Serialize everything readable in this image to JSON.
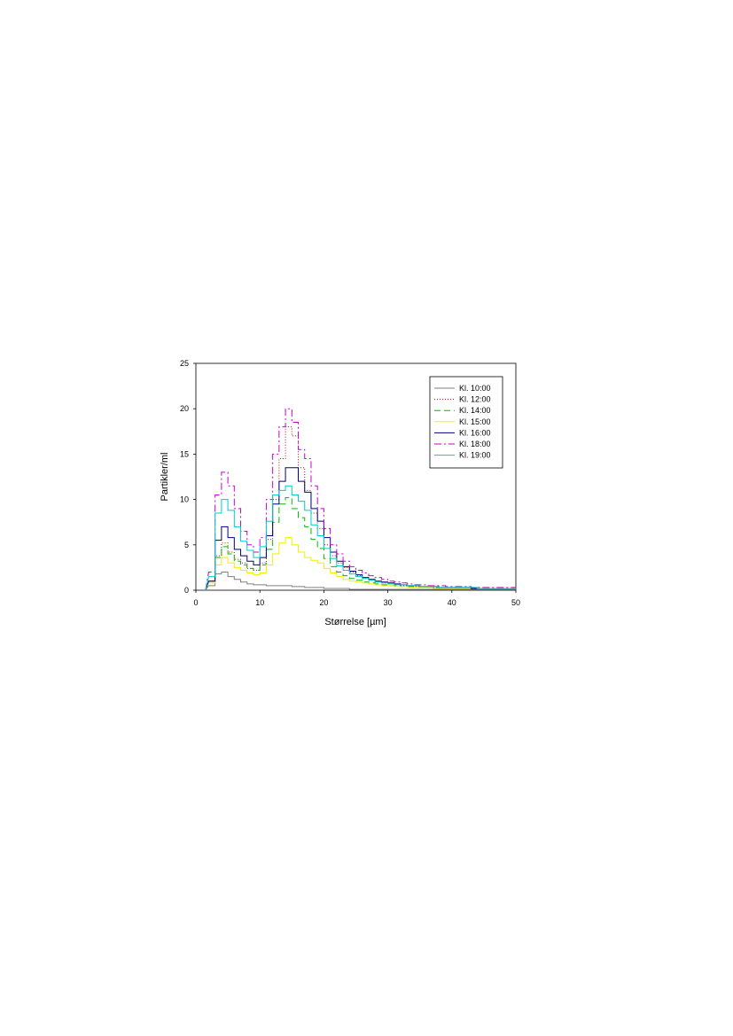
{
  "chart_data": {
    "type": "line",
    "step": true,
    "xlabel": "Størrelse [µm]",
    "ylabel": "Partikler/ml",
    "xlim": [
      0,
      50
    ],
    "ylim": [
      0,
      25
    ],
    "xticks": [
      0,
      10,
      20,
      30,
      40,
      50
    ],
    "yticks": [
      0,
      5,
      10,
      15,
      20,
      25
    ],
    "grid": false,
    "legend_position": "top-right",
    "x": [
      2,
      3,
      4,
      5,
      6,
      7,
      8,
      9,
      10,
      11,
      12,
      13,
      14,
      15,
      16,
      17,
      18,
      19,
      20,
      21,
      22,
      23,
      24,
      25,
      26,
      27,
      28,
      29,
      30,
      31,
      32,
      33,
      34,
      35,
      36,
      37,
      38,
      39,
      40,
      41,
      42,
      43,
      44,
      45,
      46,
      47,
      48,
      49,
      50
    ],
    "series": [
      {
        "name": "Kl. 10:00",
        "color": "#808080",
        "dash": "",
        "values": [
          0.5,
          1.8,
          2.0,
          1.5,
          1.2,
          0.9,
          0.7,
          0.6,
          0.6,
          0.5,
          0.5,
          0.5,
          0.5,
          0.4,
          0.4,
          0.3,
          0.3,
          0.3,
          0.2,
          0.2,
          0.2,
          0.2,
          0.1,
          0.1,
          0.1,
          0.1,
          0.1,
          0.1,
          0.1,
          0.1,
          0.1,
          0.1,
          0.1,
          0.1,
          0.1,
          0.1,
          0.1,
          0.1,
          0.1,
          0.1,
          0.1,
          0.1,
          0.1,
          0.1,
          0.1,
          0.1,
          0.1,
          0.1,
          0.1
        ]
      },
      {
        "name": "Kl. 12:00",
        "color": "#cc0000",
        "dash": "1,2",
        "values": [
          1.0,
          3.8,
          5.2,
          4.2,
          3.4,
          3.0,
          2.4,
          2.2,
          3.0,
          5.6,
          10.0,
          14.5,
          18.0,
          17.0,
          13.5,
          11.0,
          8.5,
          6.8,
          5.0,
          3.8,
          3.0,
          2.5,
          2.0,
          1.6,
          1.3,
          1.1,
          0.9,
          0.8,
          0.7,
          0.6,
          0.5,
          0.5,
          0.4,
          0.4,
          0.3,
          0.3,
          0.3,
          0.3,
          0.2,
          0.2,
          0.2,
          0.2,
          0.2,
          0.2,
          0.2,
          0.2,
          0.2,
          0.2,
          0.2
        ]
      },
      {
        "name": "Kl. 14:00",
        "color": "#00bb00",
        "dash": "7,4",
        "values": [
          1.0,
          3.6,
          4.8,
          4.0,
          3.2,
          2.8,
          2.4,
          2.2,
          2.8,
          4.5,
          7.5,
          9.5,
          10.2,
          9.0,
          8.0,
          7.0,
          5.6,
          4.6,
          3.5,
          2.6,
          2.0,
          1.6,
          1.3,
          1.1,
          0.9,
          0.8,
          0.7,
          0.6,
          0.5,
          0.5,
          0.4,
          0.4,
          0.3,
          0.3,
          0.3,
          0.3,
          0.2,
          0.2,
          0.2,
          0.2,
          0.2,
          0.2,
          0.2,
          0.2,
          0.2,
          0.2,
          0.2,
          0.2,
          0.2
        ]
      },
      {
        "name": "Kl. 15:00",
        "color": "#f0f000",
        "dash": "",
        "values": [
          0.8,
          2.8,
          3.6,
          3.0,
          2.5,
          2.2,
          1.9,
          1.7,
          1.9,
          2.8,
          4.0,
          5.2,
          5.8,
          5.0,
          4.2,
          3.6,
          3.3,
          3.0,
          2.4,
          1.9,
          1.5,
          1.2,
          1.0,
          0.9,
          0.8,
          0.7,
          0.6,
          0.5,
          0.5,
          0.4,
          0.4,
          0.3,
          0.3,
          0.3,
          0.3,
          0.2,
          0.2,
          0.2,
          0.2,
          0.2,
          0.2,
          0.2,
          0.2,
          0.2,
          0.2,
          0.2,
          0.2,
          0.2,
          0.2
        ]
      },
      {
        "name": "Kl. 16:00",
        "color": "#000080",
        "dash": "",
        "values": [
          1.0,
          5.5,
          7.0,
          5.8,
          4.5,
          3.8,
          3.2,
          2.8,
          3.6,
          6.0,
          9.5,
          12.0,
          13.5,
          13.5,
          12.0,
          10.8,
          9.0,
          7.6,
          5.8,
          4.2,
          3.2,
          2.6,
          2.1,
          1.7,
          1.4,
          1.2,
          1.0,
          0.9,
          0.8,
          0.7,
          0.6,
          0.5,
          0.5,
          0.4,
          0.4,
          0.4,
          0.3,
          0.3,
          0.3,
          0.3,
          0.3,
          0.2,
          0.2,
          0.2,
          0.2,
          0.2,
          0.2,
          0.2,
          0.2
        ]
      },
      {
        "name": "Kl. 18:00",
        "color": "#cc00cc",
        "dash": "8,3,2,3",
        "values": [
          2.0,
          10.5,
          13.0,
          11.5,
          9.0,
          6.5,
          5.0,
          4.2,
          5.8,
          10.0,
          15.0,
          18.0,
          20.0,
          18.5,
          15.5,
          14.5,
          11.5,
          9.0,
          6.8,
          5.0,
          4.0,
          3.2,
          2.6,
          2.2,
          1.9,
          1.6,
          1.4,
          1.2,
          1.0,
          0.9,
          0.8,
          0.7,
          0.6,
          0.6,
          0.5,
          0.5,
          0.5,
          0.4,
          0.4,
          0.4,
          0.4,
          0.3,
          0.3,
          0.3,
          0.3,
          0.3,
          0.3,
          0.3,
          0.3
        ]
      },
      {
        "name": "Kl. 19:00",
        "color": "#00cccc",
        "dash": "",
        "values": [
          1.5,
          8.5,
          10.0,
          8.8,
          7.0,
          5.4,
          4.4,
          3.6,
          4.8,
          7.6,
          10.5,
          11.0,
          11.5,
          10.5,
          9.8,
          8.8,
          7.2,
          6.0,
          4.6,
          3.5,
          2.7,
          2.2,
          1.8,
          1.5,
          1.3,
          1.1,
          0.9,
          0.8,
          0.7,
          0.6,
          0.6,
          0.5,
          0.5,
          0.4,
          0.4,
          0.4,
          0.3,
          0.3,
          0.3,
          0.3,
          0.3,
          0.3,
          0.2,
          0.2,
          0.2,
          0.2,
          0.2,
          0.2,
          0.2
        ]
      }
    ]
  }
}
